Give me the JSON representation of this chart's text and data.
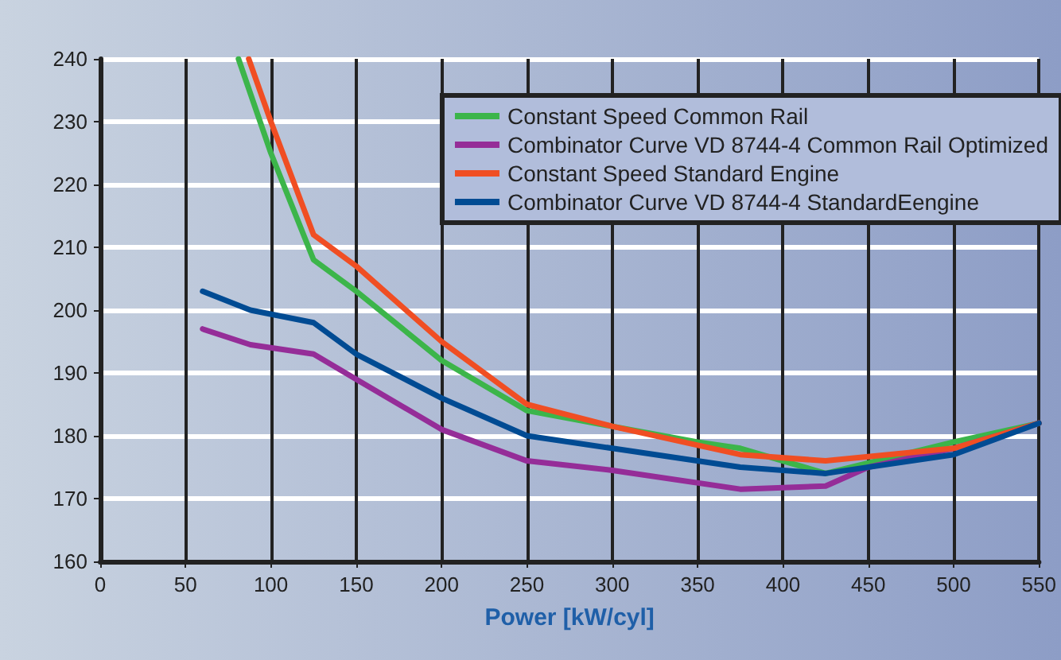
{
  "chart_data": {
    "type": "line",
    "xlabel": "Power [kW/cyl]",
    "xlim": [
      0,
      550
    ],
    "xticks": [
      0,
      50,
      100,
      150,
      200,
      250,
      300,
      350,
      400,
      450,
      500,
      550
    ],
    "ylim": [
      160,
      240
    ],
    "yticks": [
      160,
      170,
      180,
      190,
      200,
      210,
      220,
      230,
      240
    ],
    "grid": true,
    "legend": "top right",
    "marker": "none",
    "line_style": "solid",
    "series": [
      {
        "name": "Constant Speed Common Rail",
        "color": "#3cb54a",
        "x": [
          81,
          100,
          125,
          150,
          200,
          250,
          300,
          350,
          375,
          425,
          500,
          550
        ],
        "values": [
          240,
          225,
          208,
          203,
          192,
          184,
          181.5,
          179,
          178,
          174,
          179,
          182
        ]
      },
      {
        "name": "Combinator Curve VD 8744-4 Common Rail Optimized",
        "color": "#952d98",
        "x": [
          60,
          88,
          125,
          150,
          200,
          250,
          300,
          375,
          425,
          450,
          500,
          550
        ],
        "values": [
          197,
          194.5,
          193,
          189,
          181,
          176,
          174.5,
          171.5,
          172,
          175,
          178,
          182
        ]
      },
      {
        "name": "Constant Speed Standard Engine",
        "color": "#f04e23",
        "x": [
          87,
          100,
          125,
          150,
          200,
          250,
          300,
          350,
          375,
          425,
          500,
          550
        ],
        "values": [
          240,
          230,
          212,
          207,
          195,
          185,
          181.5,
          178.5,
          177,
          176,
          178,
          182
        ]
      },
      {
        "name": "Combinator Curve VD 8744-4 StandardEengine",
        "color": "#004b93",
        "x": [
          60,
          88,
          125,
          150,
          200,
          250,
          300,
          375,
          425,
          500,
          550
        ],
        "values": [
          203,
          200,
          198,
          193,
          186,
          180,
          178,
          175,
          174,
          177,
          182
        ]
      }
    ]
  }
}
